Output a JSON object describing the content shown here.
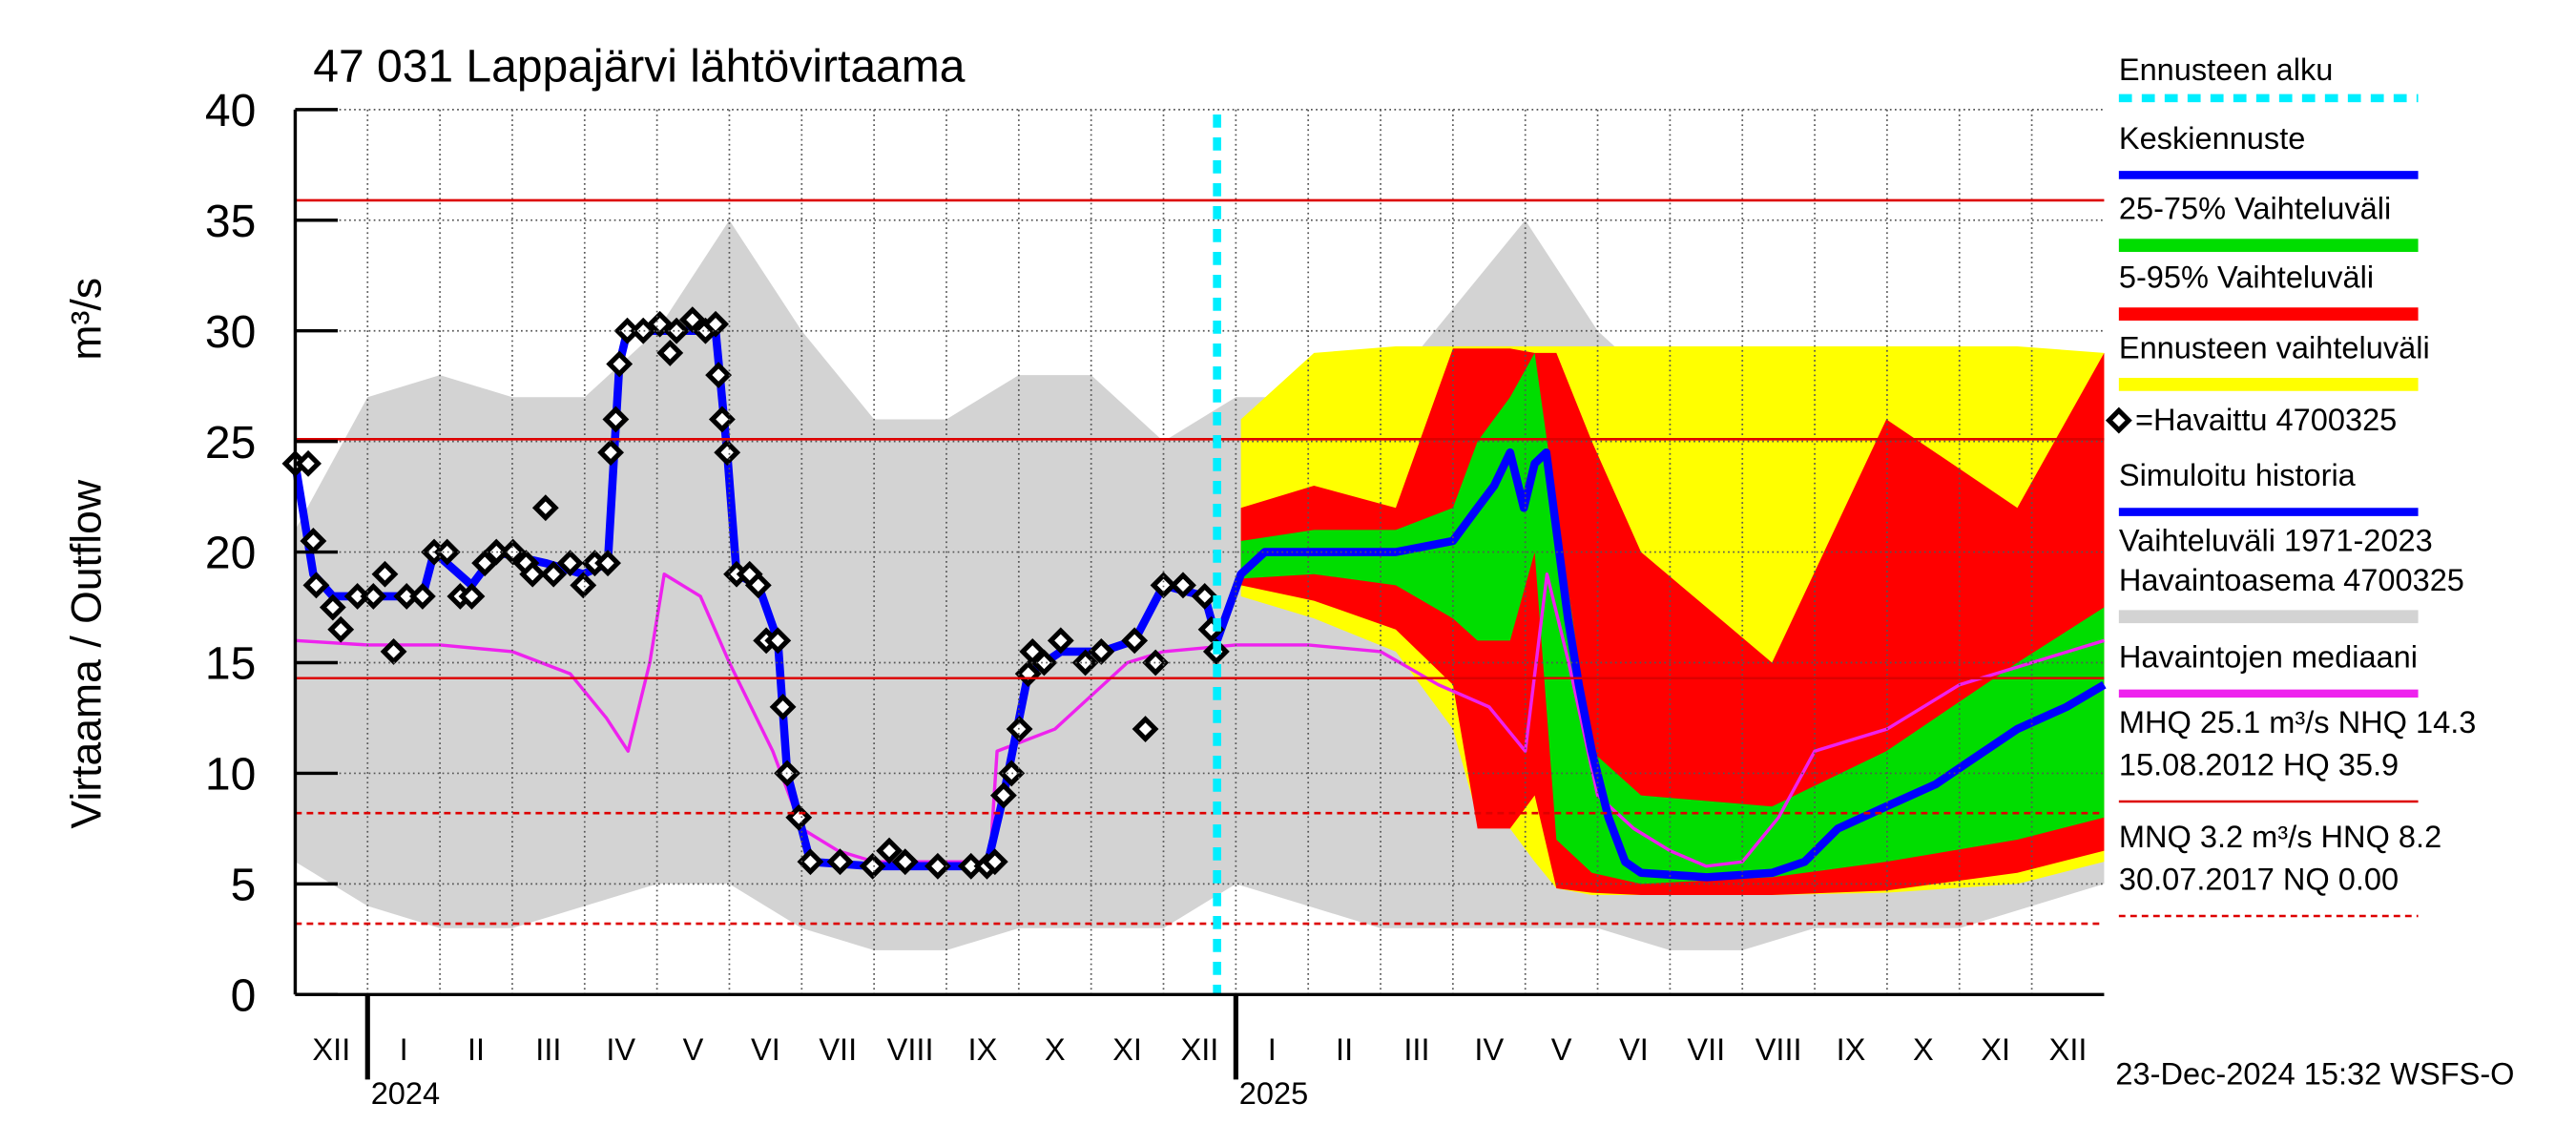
{
  "chart_data": {
    "type": "line",
    "title": "47 031 Lappajärvi lähtövirtaama",
    "y_label": "Virtaama / Outflow",
    "y_unit": "m³/s",
    "footer": "23-Dec-2024 15:32 WSFS-O",
    "ylim": [
      0,
      40
    ],
    "yticks": [
      0,
      5,
      10,
      15,
      20,
      25,
      30,
      35,
      40
    ],
    "xlim": [
      -1,
      24
    ],
    "xticks": [
      {
        "value": -0.5,
        "label": "XII"
      },
      {
        "value": 0.5,
        "label": "I"
      },
      {
        "value": 1.5,
        "label": "II"
      },
      {
        "value": 2.5,
        "label": "III"
      },
      {
        "value": 3.5,
        "label": "IV"
      },
      {
        "value": 4.5,
        "label": "V"
      },
      {
        "value": 5.5,
        "label": "VI"
      },
      {
        "value": 6.5,
        "label": "VII"
      },
      {
        "value": 7.5,
        "label": "VIII"
      },
      {
        "value": 8.5,
        "label": "IX"
      },
      {
        "value": 9.5,
        "label": "X"
      },
      {
        "value": 10.5,
        "label": "XI"
      },
      {
        "value": 11.5,
        "label": "XII"
      },
      {
        "value": 12.5,
        "label": "I"
      },
      {
        "value": 13.5,
        "label": "II"
      },
      {
        "value": 14.5,
        "label": "III"
      },
      {
        "value": 15.5,
        "label": "IV"
      },
      {
        "value": 16.5,
        "label": "V"
      },
      {
        "value": 17.5,
        "label": "VI"
      },
      {
        "value": 18.5,
        "label": "VII"
      },
      {
        "value": 19.5,
        "label": "VIII"
      },
      {
        "value": 20.5,
        "label": "IX"
      },
      {
        "value": 21.5,
        "label": "X"
      },
      {
        "value": 22.5,
        "label": "XI"
      },
      {
        "value": 23.5,
        "label": "XII"
      }
    ],
    "years": [
      {
        "value": 0,
        "label": "2024"
      },
      {
        "value": 12,
        "label": "2025"
      }
    ],
    "grid": true,
    "forecast_start": {
      "name": "Ennusteen alku",
      "x": 11.74,
      "color": "#00eeff"
    },
    "series": [
      {
        "name": "Keskiennuste",
        "kind": "line",
        "color": "#0000ff",
        "width": 5,
        "x": [
          11.74,
          12.07,
          12.4,
          13.08,
          14.21,
          15.0,
          15.34,
          15.57,
          15.79,
          15.98,
          16.13,
          16.29,
          16.43,
          16.59,
          16.74,
          16.92,
          17.15,
          17.38,
          17.6,
          18.51,
          19.41,
          19.86,
          20.32,
          20.99,
          21.67,
          22.12,
          22.8,
          23.48,
          24.0
        ],
        "values": [
          16,
          19,
          20,
          20,
          20,
          20.5,
          22,
          23,
          24.5,
          22,
          24,
          24.5,
          21,
          17,
          14,
          11,
          8,
          6,
          5.5,
          5.3,
          5.5,
          6,
          7.5,
          8.5,
          9.5,
          10.5,
          12,
          13,
          14
        ]
      },
      {
        "name": "25-75% Vaihteluväli",
        "kind": "band",
        "color": "#00dd00",
        "x": [
          12.07,
          13.08,
          14.21,
          15.0,
          15.34,
          15.79,
          16.13,
          16.43,
          16.92,
          17.6,
          19.41,
          20.99,
          22.8,
          24.0
        ],
        "low": [
          18.8,
          19,
          18.5,
          17,
          16,
          16,
          20,
          7,
          5.5,
          5,
          5.3,
          6,
          7,
          8
        ],
        "high": [
          20.5,
          21,
          21,
          22,
          25,
          27,
          29,
          22,
          11,
          9,
          8.5,
          11,
          15,
          17.5
        ]
      },
      {
        "name": "5-95% Vaihteluväli",
        "kind": "band",
        "color": "#ff0000",
        "x": [
          12.07,
          13.08,
          14.21,
          15.0,
          15.34,
          15.79,
          16.13,
          16.43,
          16.92,
          17.6,
          19.41,
          20.99,
          22.8,
          24.0
        ],
        "low": [
          18.5,
          17.8,
          16.5,
          14,
          7.5,
          7.5,
          9,
          4.8,
          4.6,
          4.5,
          4.5,
          4.7,
          5.5,
          6.5
        ],
        "high": [
          22,
          23,
          22,
          29.2,
          29.2,
          29.2,
          29,
          29,
          25,
          20,
          15,
          26,
          22,
          29
        ]
      },
      {
        "name": "Ennusteen vaihteluväli",
        "kind": "band",
        "color": "#ffff00",
        "x": [
          12.07,
          13.08,
          14.21,
          15.0,
          15.34,
          15.79,
          16.13,
          16.43,
          16.92,
          17.6,
          19.41,
          20.99,
          22.8,
          24.0
        ],
        "low": [
          18,
          17,
          15.5,
          12,
          8,
          7.5,
          6,
          4.8,
          4.5,
          4.5,
          4.5,
          4.6,
          5,
          6
        ],
        "high": [
          26,
          29,
          29.3,
          29.3,
          29.3,
          29.3,
          29.3,
          29.3,
          29.3,
          29.3,
          29.3,
          29.3,
          29.3,
          29
        ]
      },
      {
        "name": "=Havaittu 4700325",
        "kind": "markers",
        "color": "#000000",
        "x": [
          -1.0,
          -0.82,
          -0.75,
          -0.71,
          -0.48,
          -0.37,
          -0.14,
          0.08,
          0.24,
          0.36,
          0.54,
          0.76,
          0.92,
          1.1,
          1.28,
          1.44,
          1.62,
          1.78,
          2.01,
          2.19,
          2.28,
          2.46,
          2.57,
          2.8,
          2.98,
          3.14,
          3.32,
          3.36,
          3.43,
          3.48,
          3.59,
          3.81,
          4.04,
          4.18,
          4.27,
          4.49,
          4.67,
          4.81,
          4.85,
          4.9,
          4.97,
          5.1,
          5.28,
          5.4,
          5.51,
          5.67,
          5.74,
          5.8,
          5.96,
          6.12,
          6.53,
          6.98,
          7.21,
          7.43,
          7.88,
          8.34,
          8.56,
          8.67,
          8.79,
          8.9,
          9.01,
          9.13,
          9.19,
          9.35,
          9.58,
          9.92,
          10.14,
          10.6,
          10.75,
          10.89,
          11.0,
          11.27,
          11.57,
          11.66,
          11.73
        ],
        "values": [
          24,
          24,
          20.5,
          18.5,
          17.5,
          16.5,
          18,
          18,
          19,
          15.5,
          18,
          18,
          20,
          20,
          18,
          18,
          19.5,
          20,
          20,
          19.5,
          19,
          22,
          19,
          19.5,
          18.5,
          19.5,
          19.5,
          24.5,
          26,
          28.5,
          30,
          30,
          30.3,
          29,
          30,
          30.5,
          30,
          30.3,
          28,
          26,
          24.5,
          19,
          19,
          18.5,
          16,
          16,
          13,
          10,
          8,
          6,
          6,
          5.8,
          6.5,
          6,
          5.8,
          5.8,
          5.8,
          6,
          9,
          10,
          12,
          14.5,
          15.5,
          15,
          16,
          15,
          15.5,
          16,
          12,
          15,
          18.5,
          18.5,
          18,
          16.5,
          15.5
        ]
      },
      {
        "name": "Simuloitu historia",
        "kind": "line",
        "color": "#0000ff",
        "width": 5,
        "x": [
          -1.0,
          -0.75,
          -0.48,
          0.08,
          0.76,
          0.92,
          1.44,
          1.78,
          2.46,
          2.98,
          3.32,
          3.48,
          3.59,
          4.04,
          4.49,
          4.81,
          4.97,
          5.1,
          5.4,
          5.67,
          5.8,
          6.12,
          6.98,
          7.88,
          8.56,
          8.79,
          9.13,
          9.58,
          10.14,
          10.6,
          11.0,
          11.57,
          11.74
        ],
        "values": [
          24,
          19,
          18,
          18,
          18,
          20,
          18.5,
          20,
          19.5,
          19,
          19.5,
          28.5,
          30,
          30,
          30,
          30,
          24.5,
          19,
          18.5,
          16,
          10,
          6,
          5.8,
          5.8,
          5.8,
          9,
          14.5,
          15.5,
          15.5,
          16,
          18.5,
          18,
          16
        ]
      },
      {
        "name": [
          "Vaihteluväli 1971-2023",
          " Havaintoasema 4700325"
        ],
        "kind": "band",
        "color": "#d3d3d3",
        "x": [
          -1,
          0,
          1,
          2,
          3,
          4,
          5,
          6,
          7,
          8,
          9,
          10,
          11,
          12,
          13,
          14,
          15,
          16,
          17,
          18,
          19,
          20,
          21,
          22,
          23,
          24
        ],
        "low": [
          6,
          4,
          3,
          3,
          4,
          5,
          5,
          3,
          2,
          2,
          3,
          3,
          3,
          5,
          4,
          3,
          3,
          3,
          3,
          2,
          2,
          3,
          3,
          3,
          4,
          5
        ],
        "high": [
          21,
          27,
          28,
          27,
          27,
          30,
          35,
          30,
          26,
          26,
          28,
          28,
          25,
          27,
          27,
          27,
          31,
          35,
          30,
          27,
          28,
          29,
          28,
          29,
          26,
          28
        ]
      },
      {
        "name": "Havaintojen mediaani",
        "kind": "line",
        "color": "#ee22ee",
        "width": 2,
        "x": [
          -1,
          0,
          1,
          2,
          2.8,
          3.3,
          3.6,
          3.9,
          4.1,
          4.6,
          5.0,
          5.6,
          6.0,
          6.5,
          7,
          8,
          8.6,
          8.7,
          9.5,
          10,
          10.5,
          11,
          12,
          13,
          14,
          14.8,
          15.5,
          16,
          16.3,
          16.6,
          17,
          17.5,
          18,
          18.5,
          19,
          19.5,
          20,
          21,
          22,
          23,
          24
        ],
        "values": [
          16,
          15.8,
          15.8,
          15.5,
          14.5,
          12.5,
          11,
          15,
          19,
          18,
          15,
          11,
          7.5,
          6.5,
          6,
          6,
          6,
          11,
          12,
          13.5,
          15,
          15.5,
          15.8,
          15.8,
          15.5,
          14,
          13,
          11,
          19,
          15,
          9,
          7.5,
          6.5,
          5.8,
          6,
          8,
          11,
          12,
          14,
          15,
          16
        ]
      }
    ],
    "reference_lines": [
      {
        "name": "HQ",
        "value": 35.9,
        "style": "solid",
        "color": "#dd0000"
      },
      {
        "name": "MHQ",
        "value": 25.1,
        "style": "solid",
        "color": "#dd0000"
      },
      {
        "name": "NHQ",
        "value": 14.3,
        "style": "solid",
        "color": "#dd0000"
      },
      {
        "name": "HNQ",
        "value": 8.2,
        "style": "dashed",
        "color": "#dd0000"
      },
      {
        "name": "MNQ",
        "value": 3.2,
        "style": "dashed",
        "color": "#dd0000"
      },
      {
        "name": "NQ",
        "value": 0.0,
        "style": "dashed",
        "color": "#dd0000"
      }
    ],
    "reference_legend": [
      {
        "lines": [
          "MHQ 25.1 m³/s NHQ 14.3",
          "15.08.2012 HQ 35.9"
        ],
        "style": "solid"
      },
      {
        "lines": [
          "MNQ  3.2 m³/s HNQ  8.2",
          "30.07.2017 NQ 0.00"
        ],
        "style": "dashed"
      }
    ]
  }
}
